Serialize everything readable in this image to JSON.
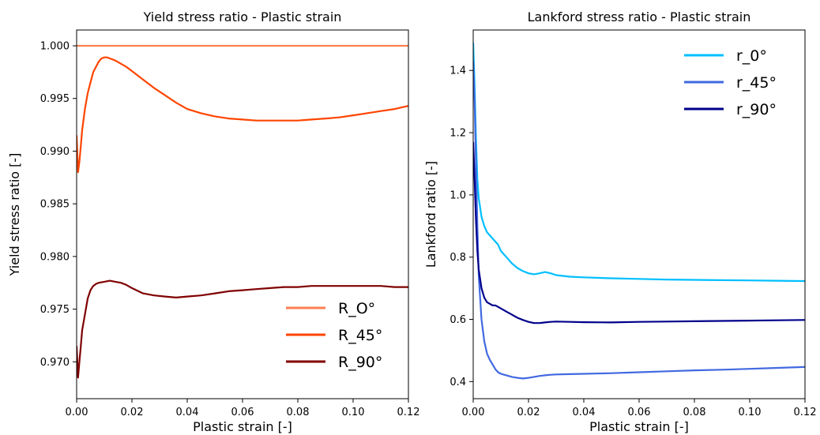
{
  "chart_data": [
    {
      "type": "line",
      "title": "Yield stress ratio - Plastic strain",
      "xlabel": "Plastic strain [-]",
      "ylabel": "Yield stress ratio [-]",
      "xlim": [
        0.0,
        0.12
      ],
      "ylim": [
        0.9665,
        1.0015
      ],
      "xticks": [
        "0.00",
        "0.02",
        "0.04",
        "0.06",
        "0.08",
        "0.10",
        "0.12"
      ],
      "yticks": [
        "0.970",
        "0.975",
        "0.980",
        "0.985",
        "0.990",
        "0.995",
        "1.000"
      ],
      "legend_position": "lower-right",
      "series": [
        {
          "name": "R_O°",
          "color": "#ff7f50",
          "x": [
            0.0,
            0.12
          ],
          "y": [
            1.0,
            1.0
          ]
        },
        {
          "name": "R_45°",
          "color": "#ff4500",
          "x": [
            0.0,
            0.0005,
            0.001,
            0.0015,
            0.002,
            0.003,
            0.004,
            0.005,
            0.006,
            0.007,
            0.008,
            0.009,
            0.01,
            0.011,
            0.012,
            0.014,
            0.016,
            0.018,
            0.02,
            0.024,
            0.028,
            0.032,
            0.036,
            0.04,
            0.045,
            0.05,
            0.055,
            0.06,
            0.065,
            0.07,
            0.075,
            0.08,
            0.085,
            0.09,
            0.095,
            0.1,
            0.105,
            0.11,
            0.115,
            0.12
          ],
          "y": [
            0.9915,
            0.988,
            0.989,
            0.9905,
            0.992,
            0.994,
            0.9955,
            0.9965,
            0.9975,
            0.998,
            0.9985,
            0.9988,
            0.9989,
            0.9989,
            0.9988,
            0.9986,
            0.9983,
            0.998,
            0.9976,
            0.9968,
            0.996,
            0.9953,
            0.9946,
            0.994,
            0.9936,
            0.9933,
            0.9931,
            0.993,
            0.9929,
            0.9929,
            0.9929,
            0.9929,
            0.993,
            0.9931,
            0.9932,
            0.9934,
            0.9936,
            0.9938,
            0.994,
            0.9943
          ]
        },
        {
          "name": "R_90°",
          "color": "#800000",
          "x": [
            0.0,
            0.0005,
            0.001,
            0.0015,
            0.002,
            0.003,
            0.004,
            0.005,
            0.006,
            0.007,
            0.008,
            0.01,
            0.012,
            0.014,
            0.016,
            0.018,
            0.02,
            0.024,
            0.028,
            0.032,
            0.036,
            0.04,
            0.045,
            0.05,
            0.055,
            0.06,
            0.065,
            0.07,
            0.075,
            0.08,
            0.085,
            0.09,
            0.095,
            0.1,
            0.105,
            0.11,
            0.115,
            0.12
          ],
          "y": [
            0.9715,
            0.9685,
            0.97,
            0.9715,
            0.973,
            0.9745,
            0.976,
            0.9768,
            0.9772,
            0.9774,
            0.9775,
            0.9776,
            0.9777,
            0.9776,
            0.9775,
            0.9773,
            0.977,
            0.9765,
            0.9763,
            0.9762,
            0.9761,
            0.9762,
            0.9763,
            0.9765,
            0.9767,
            0.9768,
            0.9769,
            0.977,
            0.9771,
            0.9771,
            0.9772,
            0.9772,
            0.9772,
            0.9772,
            0.9772,
            0.9772,
            0.9771,
            0.9771
          ]
        }
      ]
    },
    {
      "type": "line",
      "title": "Lankford stress ratio - Plastic strain",
      "xlabel": "Plastic strain [-]",
      "ylabel": "Lankford ratio [-]",
      "xlim": [
        0.0,
        0.12
      ],
      "ylim": [
        0.345,
        1.53
      ],
      "xticks": [
        "0.00",
        "0.02",
        "0.04",
        "0.06",
        "0.08",
        "0.10",
        "0.12"
      ],
      "yticks": [
        "0.4",
        "0.6",
        "0.8",
        "1.0",
        "1.2",
        "1.4"
      ],
      "legend_position": "upper-right",
      "series": [
        {
          "name": "r_0°",
          "color": "#00bfff",
          "x": [
            0.0,
            0.0005,
            0.001,
            0.0015,
            0.002,
            0.003,
            0.004,
            0.005,
            0.006,
            0.007,
            0.008,
            0.009,
            0.01,
            0.012,
            0.014,
            0.016,
            0.018,
            0.02,
            0.022,
            0.024,
            0.026,
            0.028,
            0.03,
            0.035,
            0.04,
            0.05,
            0.06,
            0.07,
            0.08,
            0.09,
            0.1,
            0.11,
            0.12
          ],
          "y": [
            1.49,
            1.35,
            1.18,
            1.05,
            0.99,
            0.93,
            0.9,
            0.88,
            0.87,
            0.86,
            0.85,
            0.84,
            0.82,
            0.8,
            0.78,
            0.765,
            0.755,
            0.748,
            0.745,
            0.748,
            0.752,
            0.748,
            0.742,
            0.737,
            0.735,
            0.732,
            0.73,
            0.728,
            0.727,
            0.726,
            0.725,
            0.724,
            0.723
          ]
        },
        {
          "name": "r_45°",
          "color": "#4169e1",
          "x": [
            0.0,
            0.0005,
            0.001,
            0.0015,
            0.002,
            0.003,
            0.004,
            0.005,
            0.006,
            0.007,
            0.008,
            0.009,
            0.01,
            0.012,
            0.014,
            0.016,
            0.018,
            0.02,
            0.022,
            0.024,
            0.026,
            0.028,
            0.03,
            0.035,
            0.04,
            0.05,
            0.06,
            0.07,
            0.08,
            0.09,
            0.1,
            0.11,
            0.12
          ],
          "y": [
            1.43,
            1.3,
            1.1,
            0.9,
            0.74,
            0.6,
            0.53,
            0.49,
            0.47,
            0.455,
            0.44,
            0.43,
            0.425,
            0.42,
            0.415,
            0.412,
            0.41,
            0.412,
            0.415,
            0.418,
            0.42,
            0.422,
            0.423,
            0.424,
            0.425,
            0.427,
            0.43,
            0.433,
            0.436,
            0.438,
            0.441,
            0.444,
            0.447
          ]
        },
        {
          "name": "r_90°",
          "color": "#00008b",
          "x": [
            0.0,
            0.0005,
            0.001,
            0.0015,
            0.002,
            0.003,
            0.004,
            0.005,
            0.006,
            0.007,
            0.008,
            0.009,
            0.01,
            0.012,
            0.014,
            0.016,
            0.018,
            0.02,
            0.022,
            0.024,
            0.026,
            0.028,
            0.03,
            0.035,
            0.04,
            0.05,
            0.06,
            0.07,
            0.08,
            0.09,
            0.1,
            0.11,
            0.12
          ],
          "y": [
            1.17,
            1.05,
            0.92,
            0.82,
            0.76,
            0.7,
            0.67,
            0.655,
            0.65,
            0.645,
            0.645,
            0.64,
            0.635,
            0.625,
            0.615,
            0.605,
            0.598,
            0.592,
            0.588,
            0.588,
            0.59,
            0.592,
            0.593,
            0.592,
            0.591,
            0.59,
            0.592,
            0.593,
            0.594,
            0.595,
            0.596,
            0.597,
            0.598
          ]
        }
      ]
    }
  ]
}
